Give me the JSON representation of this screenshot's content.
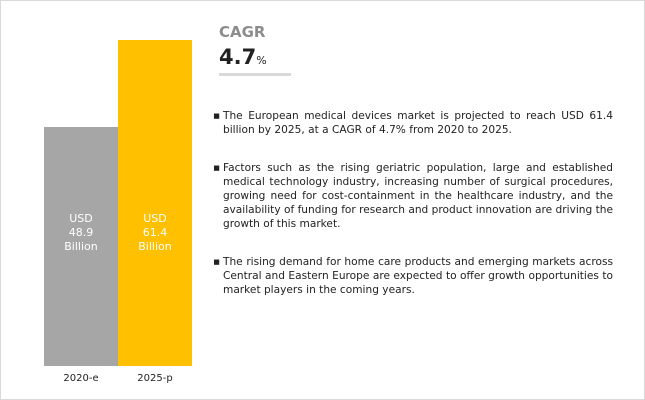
{
  "chart_data": {
    "type": "bar",
    "categories": [
      "2020-e",
      "2025-p"
    ],
    "values": [
      48.9,
      61.4
    ],
    "value_labels": [
      "USD 48.9 Billion",
      "USD 61.4 Billion"
    ],
    "colors": [
      "#a6a6a6",
      "#ffc000"
    ]
  },
  "cagr": {
    "label": "CAGR",
    "value": 4.7,
    "unit": "%"
  },
  "bullets": [
    "The European medical devices market is projected to reach USD 61.4 billion by 2025, at a CAGR of 4.7% from 2020 to 2025.",
    "Factors such as the rising geriatric population, large and established medical technology industry, increasing number of surgical procedures, growing need for cost-containment in the healthcare industry, and the availability of funding for research and product innovation are driving the growth of this market.",
    "The rising demand for home care products and emerging markets across Central and Eastern Europe are expected to offer growth opportunities to market players in the coming years."
  ]
}
